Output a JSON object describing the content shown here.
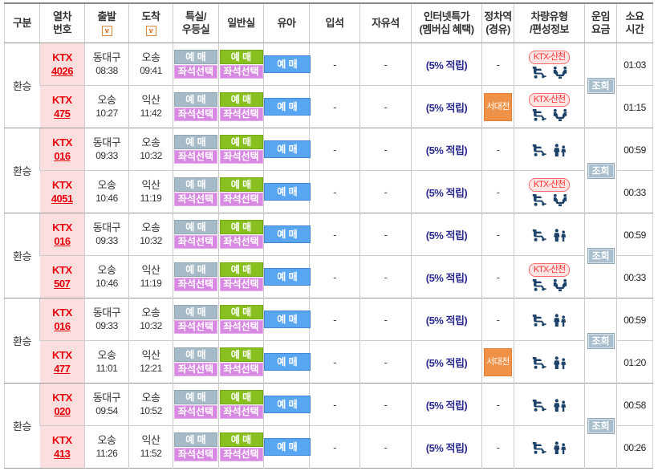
{
  "labels": {
    "reserve": "예 매",
    "seat_select": "좌석선택",
    "inquiry": "조회",
    "transfer": "환승",
    "train_type": "KTX",
    "dash": "-"
  },
  "icons": {
    "sort_glyph": "v",
    "vehicle_icon_names": [
      "wheelchair-icon",
      "family-icon",
      "facing-seats-icon"
    ]
  },
  "colors": {
    "ktx_red": "#e8000a",
    "train_cell_bg": "#fbdede",
    "first_class_btn": "#a6bac7",
    "seat_select_btn": "#d889e2",
    "standard_btn": "#89c01f",
    "infant_btn": "#58a6f2",
    "inquiry_btn": "#a9bfcd",
    "stop_badge_orange": "#ef9147",
    "sancheon_red": "#ff3333",
    "sancheon_bg": "#ffe4e4",
    "internet_navy": "#2b2b8f",
    "icon_navy": "#1d4269"
  },
  "table": {
    "columns": [
      {
        "id": "gubun",
        "lines": [
          "구분"
        ],
        "sort": false
      },
      {
        "id": "train-no",
        "lines": [
          "열차",
          "번호"
        ],
        "sort": false
      },
      {
        "id": "departure",
        "lines": [
          "출발"
        ],
        "sort": true
      },
      {
        "id": "arrival",
        "lines": [
          "도착"
        ],
        "sort": true
      },
      {
        "id": "first-class",
        "lines": [
          "특실/",
          "우등실"
        ],
        "sort": false
      },
      {
        "id": "standard-class",
        "lines": [
          "일반실"
        ],
        "sort": false
      },
      {
        "id": "infant",
        "lines": [
          "유아"
        ],
        "sort": false
      },
      {
        "id": "standing",
        "lines": [
          "입석"
        ],
        "sort": false
      },
      {
        "id": "free-seat",
        "lines": [
          "자유석"
        ],
        "sort": false
      },
      {
        "id": "internet-special",
        "lines": [
          "인터넷특가",
          "(멤버십 혜택)"
        ],
        "sort": false
      },
      {
        "id": "stops",
        "lines": [
          "정차역",
          "(경유)"
        ],
        "sort": false
      },
      {
        "id": "vehicle-type",
        "lines": [
          "차량유형",
          "/편성정보"
        ],
        "sort": false
      },
      {
        "id": "fare",
        "lines": [
          "운임",
          "요금"
        ],
        "sort": false
      },
      {
        "id": "duration",
        "lines": [
          "소요",
          "시간"
        ],
        "sort": false
      }
    ]
  },
  "groups": [
    {
      "transfer": "환승",
      "rows": [
        {
          "train_no": "4026",
          "dep_station": "동대구",
          "dep_time": "08:38",
          "arr_station": "오송",
          "arr_time": "09:41",
          "standing": "-",
          "free_seat": "-",
          "internet": "(5% 적립)",
          "stop": "-",
          "vehicle_badge": "KTX-산천",
          "vehicle_icons": [
            "wheelchair",
            "facing_seats"
          ],
          "duration": "01:03"
        },
        {
          "train_no": "475",
          "dep_station": "오송",
          "dep_time": "10:27",
          "arr_station": "익산",
          "arr_time": "11:42",
          "standing": "-",
          "free_seat": "-",
          "internet": "(5% 적립)",
          "stop": "서대전",
          "vehicle_badge": "KTX-산천",
          "vehicle_icons": [
            "wheelchair",
            "facing_seats"
          ],
          "duration": "01:15"
        }
      ]
    },
    {
      "transfer": "환승",
      "rows": [
        {
          "train_no": "016",
          "dep_station": "동대구",
          "dep_time": "09:33",
          "arr_station": "오송",
          "arr_time": "10:32",
          "standing": "-",
          "free_seat": "-",
          "internet": "(5% 적립)",
          "stop": "-",
          "vehicle_badge": "",
          "vehicle_icons": [
            "wheelchair",
            "family"
          ],
          "duration": "00:59"
        },
        {
          "train_no": "4051",
          "dep_station": "오송",
          "dep_time": "10:46",
          "arr_station": "익산",
          "arr_time": "11:19",
          "standing": "-",
          "free_seat": "-",
          "internet": "(5% 적립)",
          "stop": "-",
          "vehicle_badge": "KTX-산천",
          "vehicle_icons": [
            "wheelchair",
            "facing_seats"
          ],
          "duration": "00:33"
        }
      ]
    },
    {
      "transfer": "환승",
      "rows": [
        {
          "train_no": "016",
          "dep_station": "동대구",
          "dep_time": "09:33",
          "arr_station": "오송",
          "arr_time": "10:32",
          "standing": "-",
          "free_seat": "-",
          "internet": "(5% 적립)",
          "stop": "-",
          "vehicle_badge": "",
          "vehicle_icons": [
            "wheelchair",
            "family"
          ],
          "duration": "00:59"
        },
        {
          "train_no": "507",
          "dep_station": "오송",
          "dep_time": "10:46",
          "arr_station": "익산",
          "arr_time": "11:19",
          "standing": "-",
          "free_seat": "-",
          "internet": "(5% 적립)",
          "stop": "-",
          "vehicle_badge": "KTX-산천",
          "vehicle_icons": [
            "wheelchair",
            "facing_seats"
          ],
          "duration": "00:33"
        }
      ]
    },
    {
      "transfer": "환승",
      "rows": [
        {
          "train_no": "016",
          "dep_station": "동대구",
          "dep_time": "09:33",
          "arr_station": "오송",
          "arr_time": "10:32",
          "standing": "-",
          "free_seat": "-",
          "internet": "(5% 적립)",
          "stop": "-",
          "vehicle_badge": "",
          "vehicle_icons": [
            "wheelchair",
            "family"
          ],
          "duration": "00:59"
        },
        {
          "train_no": "477",
          "dep_station": "오송",
          "dep_time": "11:01",
          "arr_station": "익산",
          "arr_time": "12:21",
          "standing": "-",
          "free_seat": "-",
          "internet": "(5% 적립)",
          "stop": "서대전",
          "vehicle_badge": "",
          "vehicle_icons": [
            "wheelchair",
            "family"
          ],
          "duration": "01:20"
        }
      ]
    },
    {
      "transfer": "환승",
      "rows": [
        {
          "train_no": "020",
          "dep_station": "동대구",
          "dep_time": "09:54",
          "arr_station": "오송",
          "arr_time": "10:52",
          "standing": "-",
          "free_seat": "-",
          "internet": "(5% 적립)",
          "stop": "-",
          "vehicle_badge": "",
          "vehicle_icons": [
            "wheelchair",
            "family"
          ],
          "duration": "00:58"
        },
        {
          "train_no": "413",
          "dep_station": "오송",
          "dep_time": "11:26",
          "arr_station": "익산",
          "arr_time": "11:52",
          "standing": "-",
          "free_seat": "-",
          "internet": "(5% 적립)",
          "stop": "-",
          "vehicle_badge": "",
          "vehicle_icons": [
            "wheelchair",
            "family"
          ],
          "duration": "00:26"
        }
      ]
    }
  ]
}
